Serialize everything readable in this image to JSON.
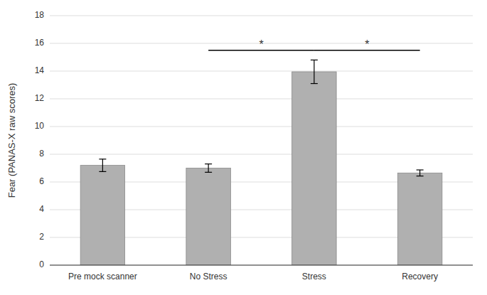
{
  "chart_data": {
    "type": "bar",
    "categories": [
      "Pre mock scanner",
      "No Stress",
      "Stress",
      "Recovery"
    ],
    "values": [
      7.2,
      7.0,
      13.95,
      6.65
    ],
    "errors": [
      0.45,
      0.3,
      0.85,
      0.22
    ],
    "color": "#b0b0b0",
    "ylabel": "Fear (PANAS-X raw scores)",
    "ylim": [
      0,
      18
    ],
    "yticks": [
      0,
      2,
      4,
      6,
      8,
      10,
      12,
      14,
      16,
      18
    ],
    "grid": true,
    "annotations": [
      {
        "from": "No Stress",
        "to": "Stress",
        "y": 15.5,
        "label": "*"
      },
      {
        "from": "Stress",
        "to": "Recovery",
        "y": 15.5,
        "label": "*"
      }
    ]
  }
}
